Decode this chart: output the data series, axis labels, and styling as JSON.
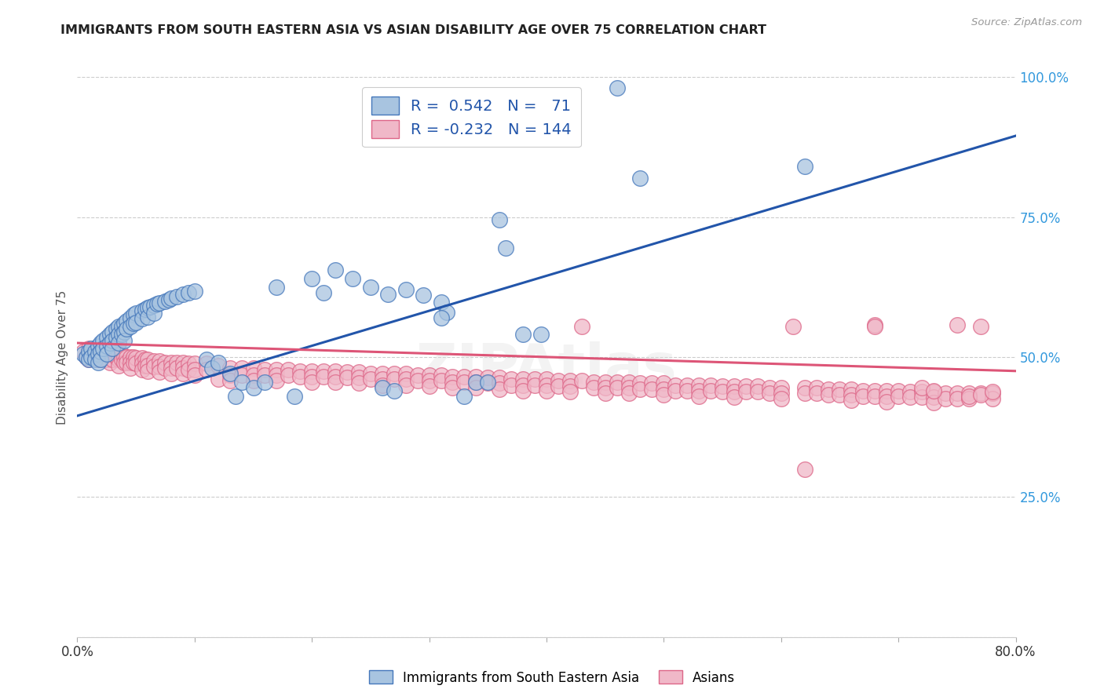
{
  "title": "IMMIGRANTS FROM SOUTH EASTERN ASIA VS ASIAN DISABILITY AGE OVER 75 CORRELATION CHART",
  "source": "Source: ZipAtlas.com",
  "ylabel": "Disability Age Over 75",
  "xlim": [
    0.0,
    0.8
  ],
  "ylim": [
    0.0,
    1.0
  ],
  "xtick_positions": [
    0.0,
    0.1,
    0.2,
    0.3,
    0.4,
    0.5,
    0.6,
    0.7,
    0.8
  ],
  "xticklabels": [
    "0.0%",
    "",
    "",
    "",
    "",
    "",
    "",
    "",
    "80.0%"
  ],
  "ytick_positions": [
    0.0,
    0.25,
    0.5,
    0.75,
    1.0
  ],
  "yticklabels": [
    "",
    "25.0%",
    "50.0%",
    "75.0%",
    "100.0%"
  ],
  "blue_R": 0.542,
  "blue_N": 71,
  "pink_R": -0.232,
  "pink_N": 144,
  "blue_label": "Immigrants from South Eastern Asia",
  "pink_label": "Asians",
  "blue_color": "#a8c4e0",
  "pink_color": "#f0b8c8",
  "blue_edge_color": "#4477bb",
  "pink_edge_color": "#dd6688",
  "blue_line_color": "#2255aa",
  "pink_line_color": "#dd5577",
  "blue_line": [
    [
      0.0,
      0.395
    ],
    [
      0.8,
      0.895
    ]
  ],
  "pink_line": [
    [
      0.0,
      0.525
    ],
    [
      0.8,
      0.475
    ]
  ],
  "blue_scatter": [
    [
      0.005,
      0.505
    ],
    [
      0.008,
      0.5
    ],
    [
      0.01,
      0.51
    ],
    [
      0.01,
      0.495
    ],
    [
      0.012,
      0.515
    ],
    [
      0.012,
      0.5
    ],
    [
      0.015,
      0.51
    ],
    [
      0.015,
      0.495
    ],
    [
      0.018,
      0.52
    ],
    [
      0.018,
      0.505
    ],
    [
      0.018,
      0.49
    ],
    [
      0.02,
      0.525
    ],
    [
      0.02,
      0.51
    ],
    [
      0.02,
      0.495
    ],
    [
      0.022,
      0.53
    ],
    [
      0.022,
      0.515
    ],
    [
      0.025,
      0.535
    ],
    [
      0.025,
      0.52
    ],
    [
      0.025,
      0.505
    ],
    [
      0.028,
      0.54
    ],
    [
      0.028,
      0.525
    ],
    [
      0.03,
      0.545
    ],
    [
      0.03,
      0.53
    ],
    [
      0.03,
      0.515
    ],
    [
      0.033,
      0.55
    ],
    [
      0.033,
      0.535
    ],
    [
      0.035,
      0.555
    ],
    [
      0.035,
      0.54
    ],
    [
      0.035,
      0.525
    ],
    [
      0.038,
      0.555
    ],
    [
      0.038,
      0.54
    ],
    [
      0.04,
      0.56
    ],
    [
      0.04,
      0.545
    ],
    [
      0.04,
      0.53
    ],
    [
      0.042,
      0.565
    ],
    [
      0.042,
      0.55
    ],
    [
      0.045,
      0.57
    ],
    [
      0.045,
      0.555
    ],
    [
      0.048,
      0.575
    ],
    [
      0.048,
      0.56
    ],
    [
      0.05,
      0.578
    ],
    [
      0.05,
      0.562
    ],
    [
      0.055,
      0.582
    ],
    [
      0.055,
      0.568
    ],
    [
      0.058,
      0.585
    ],
    [
      0.06,
      0.588
    ],
    [
      0.06,
      0.572
    ],
    [
      0.062,
      0.59
    ],
    [
      0.065,
      0.593
    ],
    [
      0.065,
      0.578
    ],
    [
      0.068,
      0.595
    ],
    [
      0.07,
      0.597
    ],
    [
      0.075,
      0.6
    ],
    [
      0.078,
      0.602
    ],
    [
      0.08,
      0.605
    ],
    [
      0.085,
      0.608
    ],
    [
      0.09,
      0.612
    ],
    [
      0.095,
      0.615
    ],
    [
      0.1,
      0.618
    ],
    [
      0.11,
      0.495
    ],
    [
      0.115,
      0.48
    ],
    [
      0.12,
      0.49
    ],
    [
      0.13,
      0.47
    ],
    [
      0.135,
      0.43
    ],
    [
      0.14,
      0.455
    ],
    [
      0.15,
      0.445
    ],
    [
      0.16,
      0.455
    ],
    [
      0.17,
      0.625
    ],
    [
      0.185,
      0.43
    ],
    [
      0.2,
      0.64
    ],
    [
      0.21,
      0.615
    ],
    [
      0.22,
      0.655
    ],
    [
      0.235,
      0.64
    ],
    [
      0.25,
      0.625
    ],
    [
      0.265,
      0.612
    ],
    [
      0.28,
      0.62
    ],
    [
      0.295,
      0.61
    ],
    [
      0.31,
      0.598
    ],
    [
      0.315,
      0.58
    ],
    [
      0.33,
      0.43
    ],
    [
      0.34,
      0.455
    ],
    [
      0.35,
      0.455
    ],
    [
      0.36,
      0.745
    ],
    [
      0.365,
      0.695
    ],
    [
      0.38,
      0.54
    ],
    [
      0.395,
      0.54
    ],
    [
      0.31,
      0.57
    ],
    [
      0.26,
      0.445
    ],
    [
      0.27,
      0.44
    ],
    [
      0.46,
      0.98
    ],
    [
      0.48,
      0.82
    ],
    [
      0.62,
      0.84
    ]
  ],
  "pink_scatter": [
    [
      0.005,
      0.51
    ],
    [
      0.008,
      0.5
    ],
    [
      0.01,
      0.515
    ],
    [
      0.01,
      0.495
    ],
    [
      0.012,
      0.51
    ],
    [
      0.012,
      0.505
    ],
    [
      0.015,
      0.5
    ],
    [
      0.018,
      0.51
    ],
    [
      0.018,
      0.495
    ],
    [
      0.02,
      0.505
    ],
    [
      0.02,
      0.495
    ],
    [
      0.022,
      0.51
    ],
    [
      0.022,
      0.5
    ],
    [
      0.025,
      0.505
    ],
    [
      0.025,
      0.495
    ],
    [
      0.028,
      0.51
    ],
    [
      0.028,
      0.5
    ],
    [
      0.028,
      0.49
    ],
    [
      0.03,
      0.505
    ],
    [
      0.03,
      0.495
    ],
    [
      0.033,
      0.51
    ],
    [
      0.033,
      0.5
    ],
    [
      0.035,
      0.505
    ],
    [
      0.035,
      0.495
    ],
    [
      0.035,
      0.485
    ],
    [
      0.038,
      0.505
    ],
    [
      0.038,
      0.495
    ],
    [
      0.04,
      0.5
    ],
    [
      0.04,
      0.49
    ],
    [
      0.042,
      0.5
    ],
    [
      0.042,
      0.49
    ],
    [
      0.045,
      0.5
    ],
    [
      0.045,
      0.49
    ],
    [
      0.045,
      0.48
    ],
    [
      0.048,
      0.5
    ],
    [
      0.048,
      0.49
    ],
    [
      0.05,
      0.498
    ],
    [
      0.05,
      0.488
    ],
    [
      0.055,
      0.498
    ],
    [
      0.055,
      0.488
    ],
    [
      0.055,
      0.478
    ],
    [
      0.058,
      0.495
    ],
    [
      0.058,
      0.485
    ],
    [
      0.06,
      0.495
    ],
    [
      0.06,
      0.485
    ],
    [
      0.06,
      0.475
    ],
    [
      0.065,
      0.493
    ],
    [
      0.065,
      0.483
    ],
    [
      0.07,
      0.493
    ],
    [
      0.07,
      0.483
    ],
    [
      0.07,
      0.473
    ],
    [
      0.075,
      0.49
    ],
    [
      0.075,
      0.48
    ],
    [
      0.08,
      0.49
    ],
    [
      0.08,
      0.48
    ],
    [
      0.08,
      0.47
    ],
    [
      0.085,
      0.49
    ],
    [
      0.085,
      0.48
    ],
    [
      0.09,
      0.49
    ],
    [
      0.09,
      0.48
    ],
    [
      0.09,
      0.47
    ],
    [
      0.095,
      0.488
    ],
    [
      0.095,
      0.478
    ],
    [
      0.1,
      0.488
    ],
    [
      0.1,
      0.478
    ],
    [
      0.1,
      0.468
    ],
    [
      0.11,
      0.488
    ],
    [
      0.11,
      0.478
    ],
    [
      0.12,
      0.46
    ],
    [
      0.12,
      0.485
    ],
    [
      0.13,
      0.48
    ],
    [
      0.13,
      0.468
    ],
    [
      0.13,
      0.458
    ],
    [
      0.14,
      0.48
    ],
    [
      0.14,
      0.468
    ],
    [
      0.15,
      0.48
    ],
    [
      0.15,
      0.468
    ],
    [
      0.15,
      0.458
    ],
    [
      0.16,
      0.478
    ],
    [
      0.16,
      0.468
    ],
    [
      0.17,
      0.478
    ],
    [
      0.17,
      0.468
    ],
    [
      0.17,
      0.458
    ],
    [
      0.18,
      0.478
    ],
    [
      0.18,
      0.468
    ],
    [
      0.19,
      0.475
    ],
    [
      0.19,
      0.465
    ],
    [
      0.2,
      0.475
    ],
    [
      0.2,
      0.465
    ],
    [
      0.2,
      0.455
    ],
    [
      0.21,
      0.475
    ],
    [
      0.21,
      0.465
    ],
    [
      0.22,
      0.475
    ],
    [
      0.22,
      0.465
    ],
    [
      0.22,
      0.455
    ],
    [
      0.23,
      0.473
    ],
    [
      0.23,
      0.463
    ],
    [
      0.24,
      0.473
    ],
    [
      0.24,
      0.463
    ],
    [
      0.24,
      0.453
    ],
    [
      0.25,
      0.47
    ],
    [
      0.25,
      0.46
    ],
    [
      0.26,
      0.47
    ],
    [
      0.26,
      0.46
    ],
    [
      0.26,
      0.45
    ],
    [
      0.27,
      0.47
    ],
    [
      0.27,
      0.46
    ],
    [
      0.28,
      0.47
    ],
    [
      0.28,
      0.46
    ],
    [
      0.28,
      0.45
    ],
    [
      0.29,
      0.468
    ],
    [
      0.29,
      0.458
    ],
    [
      0.3,
      0.468
    ],
    [
      0.3,
      0.458
    ],
    [
      0.3,
      0.448
    ],
    [
      0.31,
      0.468
    ],
    [
      0.31,
      0.458
    ],
    [
      0.32,
      0.465
    ],
    [
      0.32,
      0.455
    ],
    [
      0.32,
      0.445
    ],
    [
      0.33,
      0.465
    ],
    [
      0.33,
      0.455
    ],
    [
      0.34,
      0.465
    ],
    [
      0.34,
      0.455
    ],
    [
      0.34,
      0.445
    ],
    [
      0.35,
      0.463
    ],
    [
      0.35,
      0.453
    ],
    [
      0.36,
      0.463
    ],
    [
      0.36,
      0.453
    ],
    [
      0.36,
      0.443
    ],
    [
      0.37,
      0.46
    ],
    [
      0.37,
      0.45
    ],
    [
      0.38,
      0.46
    ],
    [
      0.38,
      0.45
    ],
    [
      0.38,
      0.44
    ],
    [
      0.39,
      0.46
    ],
    [
      0.39,
      0.45
    ],
    [
      0.4,
      0.46
    ],
    [
      0.4,
      0.45
    ],
    [
      0.4,
      0.44
    ],
    [
      0.41,
      0.458
    ],
    [
      0.41,
      0.448
    ],
    [
      0.42,
      0.458
    ],
    [
      0.42,
      0.448
    ],
    [
      0.42,
      0.438
    ],
    [
      0.43,
      0.555
    ],
    [
      0.43,
      0.458
    ],
    [
      0.44,
      0.455
    ],
    [
      0.44,
      0.445
    ],
    [
      0.45,
      0.455
    ],
    [
      0.45,
      0.445
    ],
    [
      0.45,
      0.435
    ],
    [
      0.46,
      0.455
    ],
    [
      0.46,
      0.445
    ],
    [
      0.47,
      0.455
    ],
    [
      0.47,
      0.445
    ],
    [
      0.47,
      0.435
    ],
    [
      0.48,
      0.453
    ],
    [
      0.48,
      0.443
    ],
    [
      0.49,
      0.453
    ],
    [
      0.49,
      0.443
    ],
    [
      0.5,
      0.453
    ],
    [
      0.5,
      0.443
    ],
    [
      0.5,
      0.433
    ],
    [
      0.51,
      0.45
    ],
    [
      0.51,
      0.44
    ],
    [
      0.52,
      0.45
    ],
    [
      0.52,
      0.44
    ],
    [
      0.53,
      0.45
    ],
    [
      0.53,
      0.44
    ],
    [
      0.53,
      0.43
    ],
    [
      0.54,
      0.45
    ],
    [
      0.54,
      0.44
    ],
    [
      0.55,
      0.448
    ],
    [
      0.55,
      0.438
    ],
    [
      0.56,
      0.448
    ],
    [
      0.56,
      0.438
    ],
    [
      0.56,
      0.428
    ],
    [
      0.57,
      0.448
    ],
    [
      0.57,
      0.438
    ],
    [
      0.58,
      0.448
    ],
    [
      0.58,
      0.438
    ],
    [
      0.59,
      0.445
    ],
    [
      0.59,
      0.435
    ],
    [
      0.6,
      0.445
    ],
    [
      0.6,
      0.435
    ],
    [
      0.6,
      0.425
    ],
    [
      0.61,
      0.555
    ],
    [
      0.62,
      0.445
    ],
    [
      0.62,
      0.435
    ],
    [
      0.63,
      0.445
    ],
    [
      0.63,
      0.435
    ],
    [
      0.64,
      0.443
    ],
    [
      0.64,
      0.433
    ],
    [
      0.65,
      0.443
    ],
    [
      0.65,
      0.433
    ],
    [
      0.66,
      0.443
    ],
    [
      0.66,
      0.433
    ],
    [
      0.66,
      0.423
    ],
    [
      0.67,
      0.44
    ],
    [
      0.67,
      0.43
    ],
    [
      0.68,
      0.44
    ],
    [
      0.68,
      0.43
    ],
    [
      0.69,
      0.44
    ],
    [
      0.69,
      0.43
    ],
    [
      0.69,
      0.42
    ],
    [
      0.7,
      0.44
    ],
    [
      0.7,
      0.43
    ],
    [
      0.71,
      0.438
    ],
    [
      0.71,
      0.428
    ],
    [
      0.72,
      0.438
    ],
    [
      0.72,
      0.428
    ],
    [
      0.73,
      0.438
    ],
    [
      0.73,
      0.428
    ],
    [
      0.73,
      0.418
    ],
    [
      0.74,
      0.435
    ],
    [
      0.74,
      0.425
    ],
    [
      0.75,
      0.435
    ],
    [
      0.75,
      0.425
    ],
    [
      0.76,
      0.435
    ],
    [
      0.76,
      0.425
    ],
    [
      0.77,
      0.555
    ],
    [
      0.77,
      0.435
    ],
    [
      0.78,
      0.435
    ],
    [
      0.78,
      0.425
    ],
    [
      0.62,
      0.3
    ],
    [
      0.68,
      0.558
    ],
    [
      0.68,
      0.555
    ],
    [
      0.72,
      0.445
    ],
    [
      0.73,
      0.44
    ],
    [
      0.75,
      0.558
    ],
    [
      0.76,
      0.43
    ],
    [
      0.77,
      0.432
    ],
    [
      0.78,
      0.438
    ]
  ],
  "background_color": "#ffffff",
  "grid_color": "#cccccc",
  "title_color": "#222222",
  "axis_label_color": "#555555",
  "tick_color_right": "#3399dd",
  "watermark": "ZIPAtlas"
}
